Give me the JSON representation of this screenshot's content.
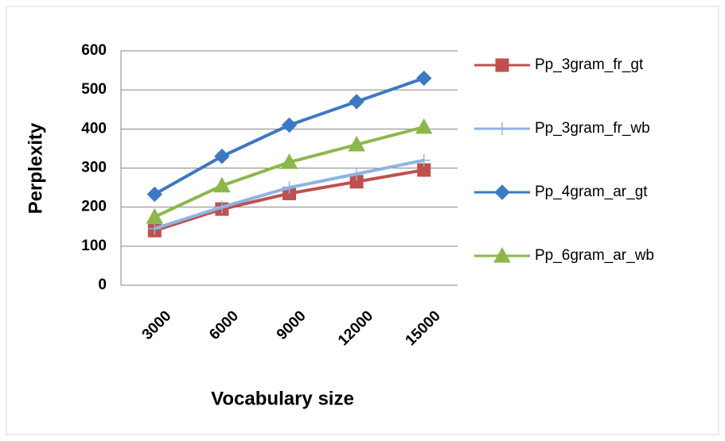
{
  "chart_data": {
    "type": "line",
    "categories": [
      "3000",
      "6000",
      "9000",
      "12000",
      "15000"
    ],
    "x_label": "Vocabulary size",
    "y_label": "Perplexity",
    "ylim": [
      0,
      600
    ],
    "yticks": [
      0,
      100,
      200,
      300,
      400,
      500,
      600
    ],
    "grid": true,
    "legend": "right",
    "series": [
      {
        "name": "Pp_3gram_fr_gt",
        "color": "#c0504d",
        "marker": "square",
        "values": [
          140,
          195,
          235,
          265,
          295
        ]
      },
      {
        "name": "Pp_3gram_fr_wb",
        "color": "#8db4e2",
        "marker": "plus",
        "values": [
          145,
          200,
          250,
          285,
          320
        ]
      },
      {
        "name": "Pp_4gram_ar_gt",
        "color": "#3d78c2",
        "marker": "diamond",
        "values": [
          233,
          330,
          410,
          470,
          530
        ]
      },
      {
        "name": "Pp_6gram_ar_wb",
        "color": "#8cb84a",
        "marker": "triangle",
        "values": [
          175,
          255,
          315,
          360,
          405
        ]
      }
    ]
  }
}
